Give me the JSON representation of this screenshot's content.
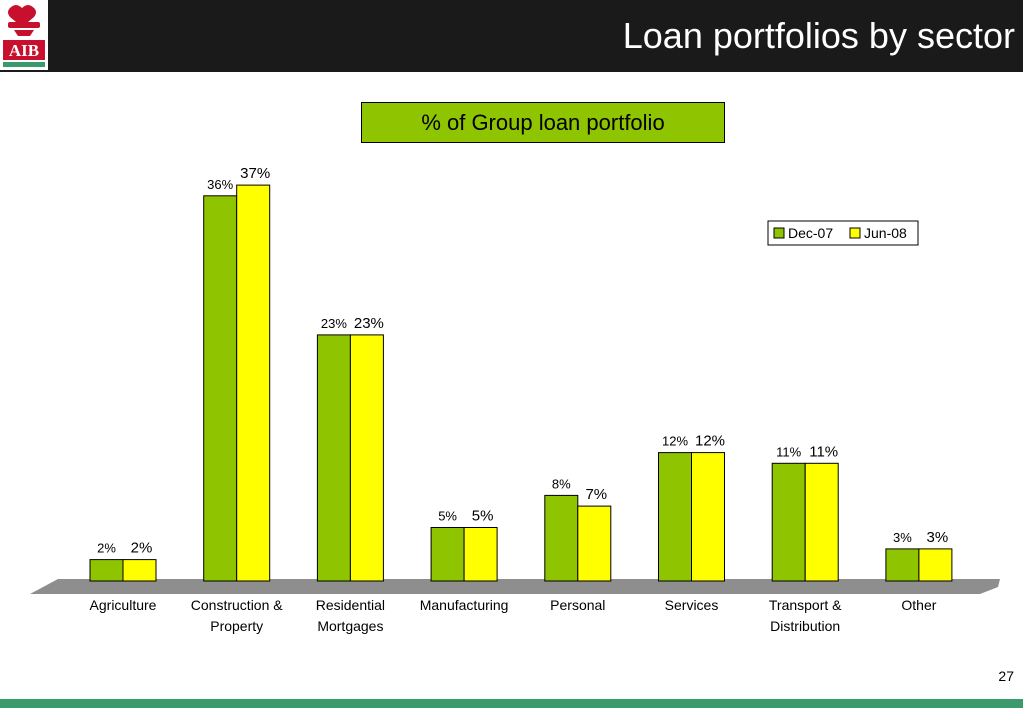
{
  "header": {
    "title": "Loan portfolios by sector",
    "logo_text": "AIB",
    "background": "#1a1a1a"
  },
  "page_number": "27",
  "colors": {
    "dec07": "#8fc400",
    "jun08": "#ffff00",
    "title_box": "#8fc400",
    "floor": "#8e8e8e",
    "logo_red": "#c8102e",
    "logo_green": "#3a9a6c",
    "footer": "#3a9a6c"
  },
  "chart_data": {
    "type": "bar",
    "title": "% of Group loan portfolio",
    "categories": [
      "Agriculture",
      "Construction & Property",
      "Residential Mortgages",
      "Manufacturing",
      "Personal",
      "Services",
      "Transport & Distribution",
      "Other"
    ],
    "category_lines": [
      [
        "Agriculture"
      ],
      [
        "Construction &",
        "Property"
      ],
      [
        "Residential",
        "Mortgages"
      ],
      [
        "Manufacturing"
      ],
      [
        "Personal"
      ],
      [
        "Services"
      ],
      [
        "Transport &",
        "Distribution"
      ],
      [
        "Other"
      ]
    ],
    "series": [
      {
        "name": "Dec-07",
        "values": [
          2,
          36,
          23,
          5,
          8,
          12,
          11,
          3
        ],
        "labels": [
          "2%",
          "36%",
          "23%",
          "5%",
          "8%",
          "12%",
          "11%",
          "3%"
        ]
      },
      {
        "name": "Jun-08",
        "values": [
          2,
          37,
          23,
          5,
          7,
          12,
          11,
          3
        ],
        "labels": [
          "2%",
          "37%",
          "23%",
          "5%",
          "7%",
          "12%",
          "11%",
          "3%"
        ]
      }
    ],
    "ylim": [
      0,
      38
    ],
    "grid": false,
    "legend_position": "top-right",
    "xlabel": "",
    "ylabel": ""
  }
}
